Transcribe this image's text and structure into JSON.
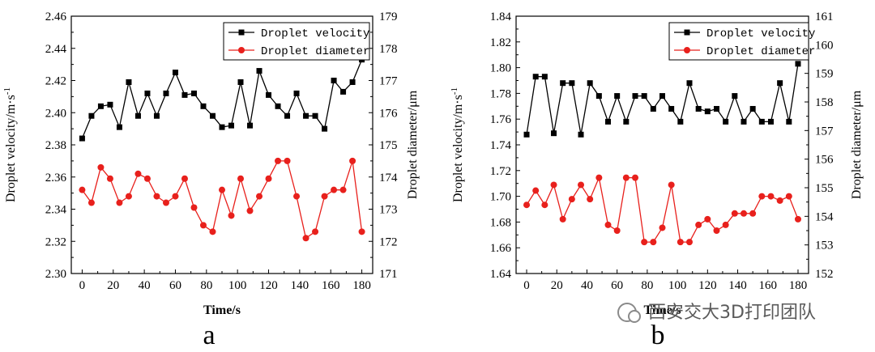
{
  "chart_data": [
    {
      "type": "line",
      "panel_label": "a",
      "xlabel": "Time/s",
      "ylabel_left": "Droplet velocity/m·s",
      "ylabel_left_sup": "-1",
      "ylabel_right": "Droplet diameter/μm",
      "x_ticks": [
        "0",
        "20",
        "40",
        "60",
        "80",
        "100",
        "120",
        "140",
        "160",
        "180"
      ],
      "xlim": [
        -7,
        187
      ],
      "ylim_left": [
        2.3,
        2.46
      ],
      "y_ticks_left": [
        "2.30",
        "2.32",
        "2.34",
        "2.36",
        "2.38",
        "2.40",
        "2.42",
        "2.44",
        "2.46"
      ],
      "ylim_right": [
        171,
        179
      ],
      "y_ticks_right": [
        "171",
        "172",
        "173",
        "174",
        "175",
        "176",
        "177",
        "178",
        "179"
      ],
      "legend_position": "top-right",
      "series": [
        {
          "name": "Droplet velocity",
          "axis": "left",
          "color": "#000000",
          "marker": "square",
          "x": [
            0,
            6,
            12,
            18,
            24,
            30,
            36,
            42,
            48,
            54,
            60,
            66,
            72,
            78,
            84,
            90,
            96,
            102,
            108,
            114,
            120,
            126,
            132,
            138,
            144,
            150,
            156,
            162,
            168,
            174,
            180
          ],
          "y": [
            2.384,
            2.398,
            2.404,
            2.405,
            2.391,
            2.419,
            2.398,
            2.412,
            2.398,
            2.412,
            2.425,
            2.411,
            2.412,
            2.404,
            2.398,
            2.391,
            2.392,
            2.419,
            2.392,
            2.426,
            2.411,
            2.404,
            2.398,
            2.412,
            2.398,
            2.398,
            2.39,
            2.42,
            2.413,
            2.419,
            2.433
          ]
        },
        {
          "name": "Droplet diameter",
          "axis": "right",
          "color": "#e8201c",
          "marker": "circle",
          "x": [
            0,
            6,
            12,
            18,
            24,
            30,
            36,
            42,
            48,
            54,
            60,
            66,
            72,
            78,
            84,
            90,
            96,
            102,
            108,
            114,
            120,
            126,
            132,
            138,
            144,
            150,
            156,
            162,
            168,
            174,
            180
          ],
          "y": [
            173.6,
            173.2,
            174.3,
            173.95,
            173.2,
            173.4,
            174.1,
            173.95,
            173.4,
            173.2,
            173.4,
            173.95,
            173.05,
            172.5,
            172.3,
            173.6,
            172.8,
            173.95,
            172.95,
            173.4,
            173.95,
            174.5,
            174.5,
            173.4,
            172.1,
            172.3,
            173.4,
            173.6,
            173.6,
            174.5,
            172.3
          ]
        }
      ]
    },
    {
      "type": "line",
      "panel_label": "b",
      "xlabel": "Time/s",
      "ylabel_left": "Droplet velocity/m·s",
      "ylabel_left_sup": "-1",
      "ylabel_right": "Droplet diameter/μm",
      "x_ticks": [
        "0",
        "20",
        "40",
        "60",
        "80",
        "100",
        "120",
        "140",
        "160",
        "180"
      ],
      "xlim": [
        -7,
        187
      ],
      "ylim_left": [
        1.64,
        1.84
      ],
      "y_ticks_left": [
        "1.64",
        "1.66",
        "1.68",
        "1.70",
        "1.72",
        "1.74",
        "1.76",
        "1.78",
        "1.80",
        "1.82",
        "1.84"
      ],
      "ylim_right": [
        152,
        161
      ],
      "y_ticks_right": [
        "152",
        "153",
        "154",
        "155",
        "156",
        "157",
        "158",
        "159",
        "160",
        "161"
      ],
      "legend_position": "top-right",
      "series": [
        {
          "name": "Droplet velocity",
          "axis": "left",
          "color": "#000000",
          "marker": "square",
          "x": [
            0,
            6,
            12,
            18,
            24,
            30,
            36,
            42,
            48,
            54,
            60,
            66,
            72,
            78,
            84,
            90,
            96,
            102,
            108,
            114,
            120,
            126,
            132,
            138,
            144,
            150,
            156,
            162,
            168,
            174,
            180
          ],
          "y": [
            1.748,
            1.793,
            1.793,
            1.749,
            1.788,
            1.788,
            1.748,
            1.788,
            1.778,
            1.758,
            1.778,
            1.758,
            1.778,
            1.778,
            1.768,
            1.778,
            1.768,
            1.758,
            1.788,
            1.768,
            1.766,
            1.768,
            1.758,
            1.778,
            1.758,
            1.768,
            1.758,
            1.758,
            1.788,
            1.758,
            1.803
          ]
        },
        {
          "name": "Droplet diameter",
          "axis": "right",
          "color": "#e8201c",
          "marker": "circle",
          "x": [
            0,
            6,
            12,
            18,
            24,
            30,
            36,
            42,
            48,
            54,
            60,
            66,
            72,
            78,
            84,
            90,
            96,
            102,
            108,
            114,
            120,
            126,
            132,
            138,
            144,
            150,
            156,
            162,
            168,
            174,
            180
          ],
          "y": [
            154.4,
            154.9,
            154.4,
            155.1,
            153.9,
            154.6,
            155.1,
            154.6,
            155.35,
            153.7,
            153.5,
            155.35,
            155.35,
            153.1,
            153.1,
            153.6,
            155.1,
            153.1,
            153.1,
            153.7,
            153.9,
            153.5,
            153.7,
            154.1,
            154.1,
            154.1,
            154.7,
            154.7,
            154.55,
            154.7,
            153.9
          ]
        }
      ]
    }
  ],
  "watermark": {
    "text": "西安交大3D打印团队"
  }
}
